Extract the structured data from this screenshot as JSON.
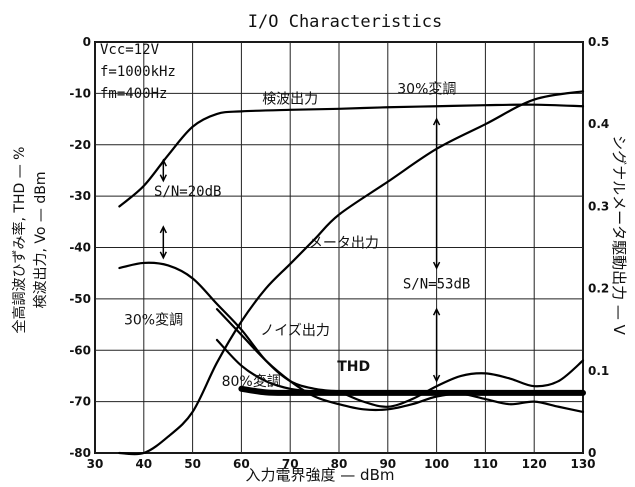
{
  "chart_data": {
    "type": "line",
    "title": "I/O Characteristics",
    "xlabel": "入力電界強度 — dBm",
    "ylabel_left": "全高調波ひずみ率, THD — %\n検波出力, Vo — dBm",
    "ylabel_right": "シグナルメータ駆動出力 — V",
    "xlim": [
      30,
      130
    ],
    "ylim_left": [
      -80,
      0
    ],
    "ylim_right": [
      0,
      0.5
    ],
    "x_ticks": [
      30,
      40,
      50,
      60,
      70,
      80,
      90,
      100,
      110,
      120,
      130
    ],
    "y_ticks_left": [
      0,
      -10,
      -20,
      -30,
      -40,
      -50,
      -60,
      -70,
      -80
    ],
    "y_ticks_right": [
      0.5,
      0.4,
      0.3,
      0.2,
      0.1,
      0
    ],
    "x_tick_labels": [
      "30",
      "40",
      "50",
      "60",
      "70",
      "80",
      "90",
      "100",
      "110",
      "120",
      "130"
    ],
    "y_tick_labels_left": [
      "0",
      "-10",
      "-20",
      "-30",
      "-40",
      "-50",
      "-60",
      "-70",
      "-80"
    ],
    "y_tick_labels_right": [
      "0.5",
      "0.4",
      "0.3",
      "0.2",
      "0.1",
      "0"
    ],
    "grid": true,
    "conditions": [
      "Vcc=12V",
      "f=1000kHz",
      "fm=400Hz"
    ],
    "series": [
      {
        "name": "検波出力 30%変調",
        "axis": "left",
        "x": [
          35,
          40,
          45,
          50,
          55,
          60,
          70,
          80,
          90,
          100,
          110,
          120,
          130
        ],
        "y": [
          -32,
          -28,
          -22,
          -16.5,
          -14,
          -13.5,
          -13.2,
          -13,
          -12.7,
          -12.5,
          -12.3,
          -12.2,
          -12.5
        ]
      },
      {
        "name": "メータ出力",
        "axis": "right",
        "x": [
          35,
          40,
          45,
          50,
          55,
          60,
          65,
          70,
          75,
          80,
          90,
          100,
          110,
          120,
          130
        ],
        "y": [
          0.0,
          0.0,
          0.02,
          0.05,
          0.11,
          0.16,
          0.2,
          0.23,
          0.26,
          0.29,
          0.33,
          0.37,
          0.4,
          0.43,
          0.44
        ]
      },
      {
        "name": "30%変調",
        "axis": "left",
        "x": [
          35,
          40,
          45,
          50,
          55,
          60,
          65,
          70,
          75,
          80
        ],
        "y": [
          -44,
          -43,
          -43.5,
          -46,
          -51,
          -56,
          -62,
          -66,
          -67.5,
          -68
        ]
      },
      {
        "name": "ノイズ出力",
        "axis": "left",
        "x": [
          55,
          60,
          65,
          70,
          75,
          80,
          85,
          90,
          95,
          100,
          105,
          110,
          115,
          120,
          125,
          130
        ],
        "y": [
          -52,
          -57,
          -62,
          -66,
          -69,
          -70.5,
          -71.5,
          -71.5,
          -70.5,
          -69,
          -68.5,
          -69.5,
          -70.5,
          -70,
          -71,
          -72
        ]
      },
      {
        "name": "80%変調",
        "axis": "left",
        "x": [
          55,
          60,
          65,
          70,
          75,
          80
        ],
        "y": [
          -58,
          -63,
          -66,
          -67.5,
          -68,
          -68
        ]
      },
      {
        "name": "THD",
        "axis": "left",
        "x": [
          60,
          65,
          70,
          75,
          80,
          90,
          100,
          110,
          120,
          130
        ],
        "y": [
          -67.5,
          -68.2,
          -68.3,
          -68.3,
          -68.3,
          -68.3,
          -68.3,
          -68.3,
          -68.3,
          -68.3
        ]
      },
      {
        "name": "",
        "axis": "left",
        "x": [
          80,
          85,
          90,
          95,
          100,
          105,
          110,
          115,
          120,
          125,
          130
        ],
        "y": [
          -68,
          -70,
          -71,
          -69.5,
          -67,
          -65,
          -64.5,
          -65.5,
          -67,
          -66,
          -62
        ]
      }
    ],
    "annotations": [
      {
        "text": "S/N=20dB",
        "x": 49,
        "y": -30
      },
      {
        "text": "S/N=53dB",
        "x": 100,
        "y": -48
      },
      {
        "text": "検波出力",
        "x": 70,
        "y": -12
      },
      {
        "text": "30%変調",
        "x": 98,
        "y": -10
      },
      {
        "text": "メータ出力",
        "x": 81,
        "y": -40
      },
      {
        "text": "30%変調",
        "x": 42,
        "y": -55
      },
      {
        "text": "ノイズ出力",
        "x": 71,
        "y": -57
      },
      {
        "text": "THD",
        "x": 83,
        "y": -64
      },
      {
        "text": "80%変調",
        "x": 62,
        "y": -67
      }
    ]
  }
}
